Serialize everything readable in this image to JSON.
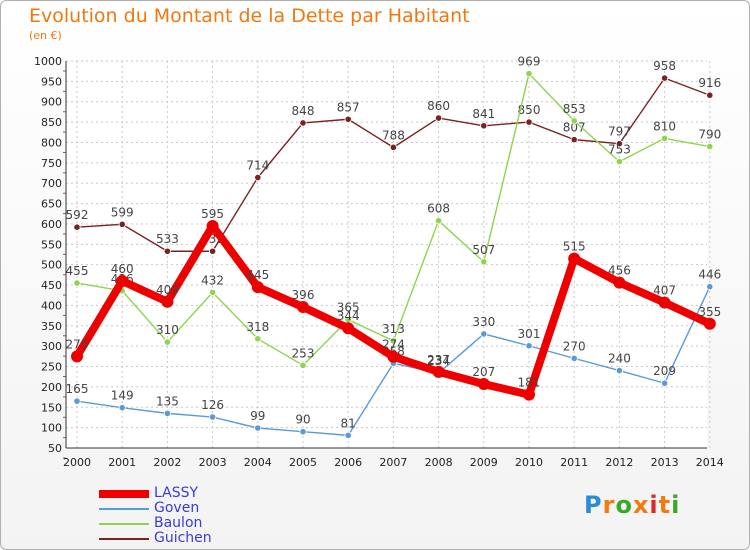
{
  "header": {
    "title": "Evolution du Montant de la Dette par Habitant",
    "subtitle": "(en €)"
  },
  "logo": {
    "text": "Proxiti",
    "colors": [
      "#2a8bd8",
      "#f07c10",
      "#39a82b",
      "#f07c10",
      "#d82b2b",
      "#f07c10",
      "#39a82b"
    ]
  },
  "chart_data": {
    "type": "line",
    "title": "Evolution du Montant de la Dette par Habitant",
    "subtitle": "(en €)",
    "x": [
      "2000",
      "2001",
      "2002",
      "2003",
      "2004",
      "2005",
      "2006",
      "2007",
      "2008",
      "2009",
      "2010",
      "2011",
      "2012",
      "2013",
      "2014"
    ],
    "ylim": [
      50,
      1000
    ],
    "yticks": [
      50,
      100,
      150,
      200,
      250,
      300,
      350,
      400,
      450,
      500,
      550,
      600,
      650,
      700,
      750,
      800,
      850,
      900,
      950,
      1000
    ],
    "grid": true,
    "legend_position": "bottom-left",
    "series": [
      {
        "name": "LASSY",
        "color": "#ee0000",
        "values": [
          275,
          460,
          409,
          595,
          445,
          396,
          344,
          274,
          237,
          207,
          181,
          515,
          456,
          407,
          355
        ],
        "labels": [
          "275",
          "460",
          "409",
          "595",
          "445",
          "396",
          "344",
          "274",
          "237",
          "207",
          "181",
          "515",
          "456",
          "407",
          "355"
        ]
      },
      {
        "name": "Goven",
        "color": "#5a9ad6",
        "values": [
          165,
          149,
          135,
          126,
          99,
          90,
          81,
          258,
          234,
          330,
          301,
          270,
          240,
          209,
          446
        ],
        "labels": [
          "165",
          "149",
          "135",
          "126",
          "99",
          "90",
          "81",
          "258",
          "234",
          "330",
          "301",
          "270",
          "240",
          "209",
          "446"
        ]
      },
      {
        "name": "Baulon",
        "color": "#8ed44e",
        "values": [
          455,
          436,
          310,
          432,
          318,
          253,
          365,
          313,
          608,
          507,
          969,
          853,
          753,
          810,
          790
        ],
        "labels": [
          "455",
          "436",
          "310",
          "432",
          "318",
          "253",
          "365",
          "313",
          "608",
          "507",
          "969",
          "853",
          "753",
          "810",
          "790"
        ]
      },
      {
        "name": "Guichen",
        "color": "#7a2222",
        "values": [
          592,
          599,
          533,
          533,
          714,
          848,
          857,
          788,
          860,
          841,
          850,
          807,
          797,
          958,
          916
        ],
        "labels": [
          "592",
          "599",
          "533",
          "533",
          "714",
          "848",
          "857",
          "788",
          "860",
          "841",
          "850",
          "807",
          "797",
          "958",
          "916"
        ]
      }
    ],
    "draw_order": [
      "Guichen",
      "Baulon",
      "Goven",
      "LASSY"
    ]
  }
}
